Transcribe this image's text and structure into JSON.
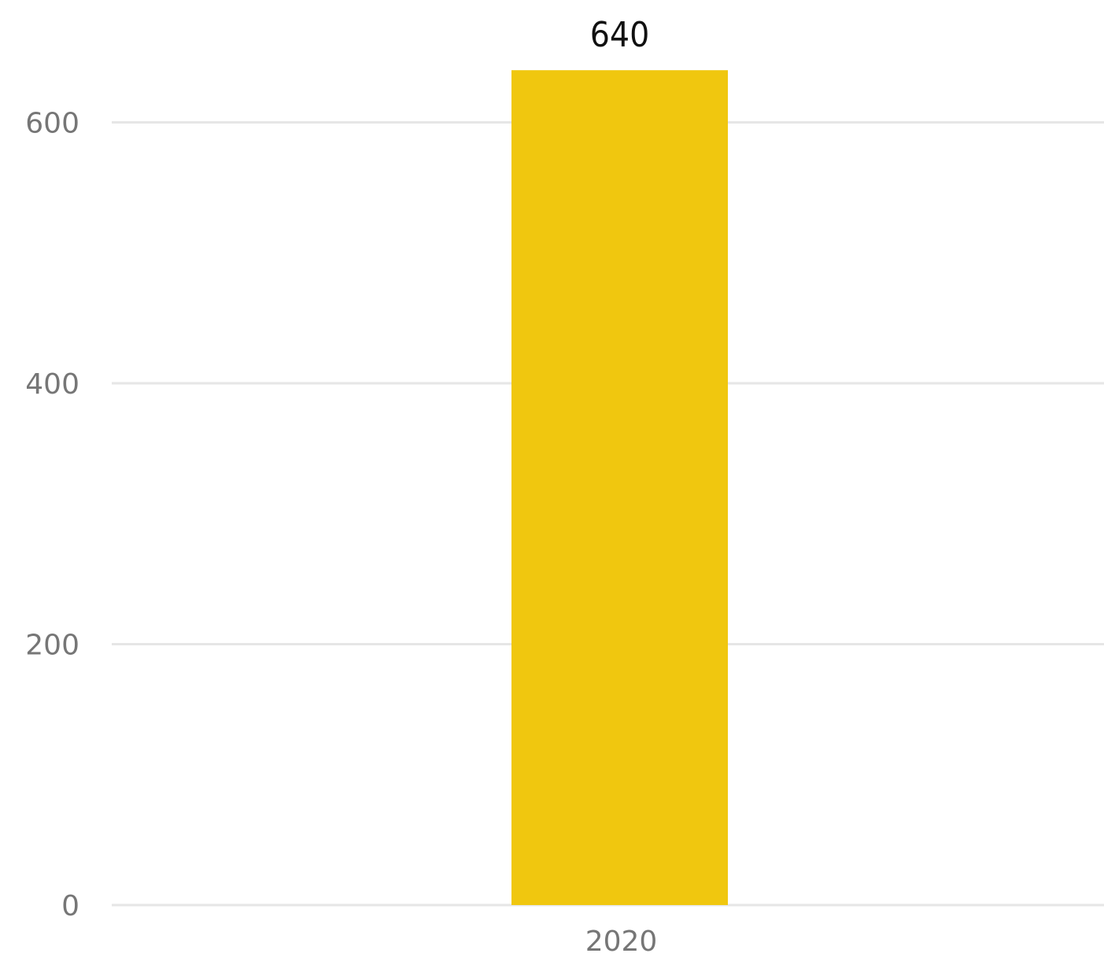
{
  "chart_data": {
    "type": "bar",
    "categories": [
      "2020"
    ],
    "series": [
      {
        "values": [
          640
        ]
      }
    ],
    "data_labels": [
      "640"
    ],
    "y_ticks": [
      "0",
      "200",
      "400",
      "600"
    ],
    "ylim": [
      0,
      600
    ],
    "grid": true,
    "legend": "none",
    "title": "",
    "xlabel": "",
    "ylabel": "",
    "colors": {
      "bar": "#F0C70F",
      "grid": "#E6E6E6",
      "tick_text": "#767676",
      "data_label_text": "#111111",
      "background": "#FFFFFF"
    }
  }
}
